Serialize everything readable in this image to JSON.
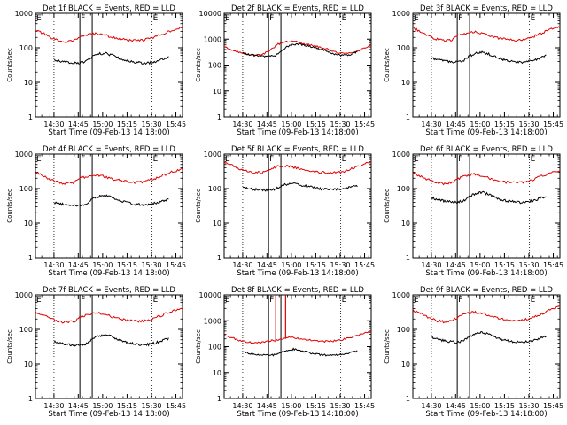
{
  "chart_data": [
    {
      "type": "line",
      "title": "Det 1f BLACK = Events, RED = LLD",
      "xlabel": "Start Time (09-Feb-13 14:18:00)",
      "ylabel": "Counts/sec",
      "yscale": "log",
      "ylim": [
        1,
        1000
      ],
      "ytick_labels": [
        "1",
        "10",
        "100",
        "1000"
      ],
      "xtick_labels": [
        "14:30",
        "14:45",
        "15:00",
        "15:15",
        "15:30",
        "15:45"
      ],
      "markers": [
        "E",
        "F",
        "E"
      ],
      "series": [
        {
          "color": "#e00000",
          "values": [
            320,
            260,
            190,
            160,
            150,
            165,
            220,
            240,
            260,
            230,
            200,
            180,
            165,
            160,
            170,
            190,
            230,
            290,
            340,
            380
          ]
        },
        {
          "color": "#000000",
          "values": [
            45,
            40,
            38,
            37,
            36,
            40,
            55,
            66,
            70,
            62,
            52,
            44,
            40,
            38,
            36,
            37,
            40,
            48,
            55,
            null
          ]
        }
      ]
    },
    {
      "type": "line",
      "title": "Det 2f BLACK = Events, RED = LLD",
      "xlabel": "Start Time (09-Feb-13 14:18:00)",
      "ylabel": "Counts/sec",
      "yscale": "log",
      "ylim": [
        1,
        10000
      ],
      "ytick_labels": [
        "1",
        "10",
        "100",
        "1000",
        "10000"
      ],
      "xtick_labels": [
        "14:30",
        "14:45",
        "15:00",
        "15:15",
        "15:30",
        "15:45"
      ],
      "markers": [
        "E",
        "F",
        "E"
      ],
      "series": [
        {
          "color": "#e00000",
          "values": [
            500,
            380,
            300,
            260,
            250,
            260,
            380,
            650,
            800,
            830,
            700,
            600,
            520,
            450,
            330,
            280,
            280,
            320,
            450,
            550
          ]
        },
        {
          "color": "#000000",
          "values": [
            300,
            250,
            230,
            220,
            215,
            230,
            320,
            520,
            620,
            640,
            560,
            500,
            430,
            380,
            280,
            240,
            240,
            260,
            330,
            null
          ]
        }
      ]
    },
    {
      "type": "line",
      "title": "Det 3f BLACK = Events, RED = LLD",
      "xlabel": "Start Time (09-Feb-13 14:18:00)",
      "ylabel": "Counts/sec",
      "yscale": "log",
      "ylim": [
        1,
        1000
      ],
      "ytick_labels": [
        "1",
        "10",
        "100",
        "1000"
      ],
      "xtick_labels": [
        "14:30",
        "14:45",
        "15:00",
        "15:15",
        "15:30",
        "15:45"
      ],
      "markers": [
        "E",
        "F",
        "E"
      ],
      "series": [
        {
          "color": "#e00000",
          "values": [
            380,
            300,
            220,
            180,
            160,
            170,
            230,
            270,
            290,
            260,
            220,
            190,
            175,
            165,
            170,
            190,
            230,
            290,
            360,
            400
          ]
        },
        {
          "color": "#000000",
          "values": [
            50,
            45,
            42,
            40,
            38,
            42,
            58,
            70,
            75,
            66,
            55,
            47,
            42,
            40,
            38,
            40,
            44,
            50,
            58,
            null
          ]
        }
      ]
    },
    {
      "type": "line",
      "title": "Det 4f BLACK = Events, RED = LLD",
      "xlabel": "Start Time (09-Feb-13 14:18:00)",
      "ylabel": "Counts/sec",
      "yscale": "log",
      "ylim": [
        1,
        1000
      ],
      "ytick_labels": [
        "1",
        "10",
        "100",
        "1000"
      ],
      "xtick_labels": [
        "14:30",
        "14:45",
        "15:00",
        "15:15",
        "15:30",
        "15:45"
      ],
      "markers": [
        "E",
        "F",
        "E"
      ],
      "series": [
        {
          "color": "#e00000",
          "values": [
            300,
            230,
            180,
            150,
            140,
            150,
            210,
            230,
            250,
            220,
            190,
            170,
            155,
            150,
            160,
            180,
            220,
            270,
            320,
            360
          ]
        },
        {
          "color": "#000000",
          "values": [
            40,
            36,
            34,
            33,
            32,
            36,
            50,
            60,
            65,
            58,
            48,
            41,
            37,
            35,
            34,
            35,
            38,
            44,
            50,
            null
          ]
        }
      ]
    },
    {
      "type": "line",
      "title": "Det 5f BLACK = Events, RED = LLD",
      "xlabel": "Start Time (09-Feb-13 14:18:00)",
      "ylabel": "Counts/sec",
      "yscale": "log",
      "ylim": [
        1,
        1000
      ],
      "ytick_labels": [
        "1",
        "10",
        "100",
        "1000"
      ],
      "xtick_labels": [
        "14:30",
        "14:45",
        "15:00",
        "15:15",
        "15:30",
        "15:45"
      ],
      "markers": [
        "E",
        "F",
        "E"
      ],
      "series": [
        {
          "color": "#e00000",
          "values": [
            600,
            480,
            380,
            320,
            290,
            290,
            380,
            440,
            460,
            420,
            360,
            320,
            300,
            290,
            290,
            300,
            340,
            420,
            520,
            620
          ]
        },
        {
          "color": "#000000",
          "values": [
            110,
            100,
            95,
            92,
            90,
            95,
            120,
            135,
            140,
            130,
            118,
            108,
            100,
            96,
            94,
            95,
            100,
            110,
            120,
            null
          ]
        }
      ]
    },
    {
      "type": "line",
      "title": "Det 6f BLACK = Events, RED = LLD",
      "xlabel": "Start Time (09-Feb-13 14:18:00)",
      "ylabel": "Counts/sec",
      "yscale": "log",
      "ylim": [
        1,
        1000
      ],
      "ytick_labels": [
        "1",
        "10",
        "100",
        "1000"
      ],
      "xtick_labels": [
        "14:30",
        "14:45",
        "15:00",
        "15:15",
        "15:30",
        "15:45"
      ],
      "markers": [
        "E",
        "F",
        "E"
      ],
      "series": [
        {
          "color": "#e00000",
          "values": [
            280,
            230,
            180,
            150,
            140,
            150,
            200,
            240,
            260,
            230,
            195,
            170,
            155,
            148,
            150,
            165,
            200,
            250,
            300,
            340
          ]
        },
        {
          "color": "#000000",
          "values": [
            55,
            48,
            44,
            42,
            40,
            44,
            60,
            72,
            78,
            68,
            56,
            48,
            44,
            42,
            40,
            41,
            45,
            52,
            60,
            null
          ]
        }
      ]
    },
    {
      "type": "line",
      "title": "Det 7f BLACK = Events, RED = LLD",
      "xlabel": "Start Time (09-Feb-13 14:18:00)",
      "ylabel": "Counts/sec",
      "yscale": "log",
      "ylim": [
        1,
        1000
      ],
      "ytick_labels": [
        "1",
        "10",
        "100",
        "1000"
      ],
      "xtick_labels": [
        "14:30",
        "14:45",
        "15:00",
        "15:15",
        "15:30",
        "15:45"
      ],
      "markers": [
        "E",
        "F",
        "E"
      ],
      "series": [
        {
          "color": "#e00000",
          "values": [
            320,
            260,
            200,
            170,
            160,
            170,
            240,
            280,
            300,
            270,
            230,
            200,
            180,
            170,
            175,
            195,
            240,
            300,
            360,
            420
          ]
        },
        {
          "color": "#000000",
          "values": [
            45,
            40,
            37,
            35,
            34,
            38,
            52,
            64,
            70,
            62,
            52,
            44,
            40,
            37,
            36,
            37,
            41,
            48,
            55,
            null
          ]
        }
      ]
    },
    {
      "type": "line",
      "title": "Det 8f BLACK = Events, RED = LLD",
      "xlabel": "Start Time (09-Feb-13 14:18:00)",
      "ylabel": "Counts/sec",
      "yscale": "log",
      "ylim": [
        1,
        10000
      ],
      "ytick_labels": [
        "1",
        "10",
        "100",
        "1000",
        "10000"
      ],
      "xtick_labels": [
        "14:30",
        "14:45",
        "15:00",
        "15:15",
        "15:30",
        "15:45"
      ],
      "markers": [
        "E",
        "F",
        "E"
      ],
      "spikes": [
        {
          "at": 6.8,
          "base": 150
        },
        {
          "at": 8.1,
          "base": 200
        }
      ],
      "series": [
        {
          "color": "#e00000",
          "values": [
            300,
            220,
            170,
            150,
            140,
            145,
            170,
            180,
            230,
            220,
            200,
            180,
            165,
            160,
            165,
            180,
            210,
            260,
            320,
            380
          ]
        },
        {
          "color": "#000000",
          "values": [
            60,
            55,
            50,
            48,
            46,
            48,
            60,
            70,
            80,
            72,
            62,
            55,
            50,
            47,
            46,
            48,
            52,
            60,
            68,
            null
          ]
        }
      ]
    },
    {
      "type": "line",
      "title": "Det 9f BLACK = Events, RED = LLD",
      "xlabel": "Start Time (09-Feb-13 14:18:00)",
      "ylabel": "Counts/sec",
      "yscale": "log",
      "ylim": [
        1,
        1000
      ],
      "ytick_labels": [
        "1",
        "10",
        "100",
        "1000"
      ],
      "xtick_labels": [
        "14:30",
        "14:45",
        "15:00",
        "15:15",
        "15:30",
        "15:45"
      ],
      "markers": [
        "E",
        "F",
        "E"
      ],
      "series": [
        {
          "color": "#e00000",
          "values": [
            360,
            290,
            220,
            180,
            165,
            175,
            240,
            290,
            320,
            290,
            245,
            210,
            190,
            180,
            185,
            205,
            250,
            310,
            380,
            450
          ]
        },
        {
          "color": "#000000",
          "values": [
            60,
            52,
            47,
            44,
            42,
            46,
            62,
            76,
            82,
            72,
            60,
            52,
            47,
            44,
            43,
            44,
            48,
            56,
            64,
            null
          ]
        }
      ]
    }
  ]
}
